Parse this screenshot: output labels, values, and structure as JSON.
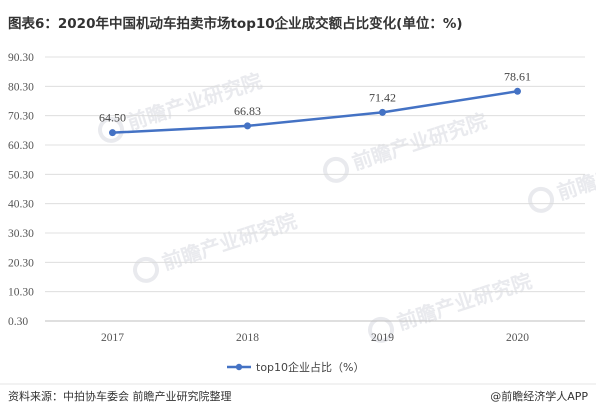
{
  "title": "图表6：2020年中国机动车拍卖市场top10企业成交额占比变化(单位：%)",
  "footer": {
    "source": "资料来源：中拍协车委会 前瞻产业研究院整理",
    "brand": "@前瞻经济学人APP"
  },
  "watermark": {
    "text": "前瞻产业研究院"
  },
  "colors": {
    "line": "#4472c4",
    "grid": "#d9d9d9",
    "axis": "#bfbfbf",
    "title": "#333333",
    "watermark": "#e9eaee"
  },
  "chart_data": {
    "type": "line",
    "title": "图表6：2020年中国机动车拍卖市场top10企业成交额占比变化(单位：%)",
    "xlabel": "",
    "ylabel": "",
    "categories": [
      "2017",
      "2018",
      "2019",
      "2020"
    ],
    "y_ticks": [
      "0.30",
      "10.30",
      "20.30",
      "30.30",
      "40.30",
      "50.30",
      "60.30",
      "70.30",
      "80.30",
      "90.30"
    ],
    "ylim": [
      0.3,
      90.3
    ],
    "grid": true,
    "legend_position": "bottom-center",
    "series": [
      {
        "name": "top10企业占比（%）",
        "values": [
          64.5,
          66.83,
          71.42,
          78.61
        ],
        "labels": [
          "64.50",
          "66.83",
          "71.42",
          "78.61"
        ]
      }
    ]
  }
}
